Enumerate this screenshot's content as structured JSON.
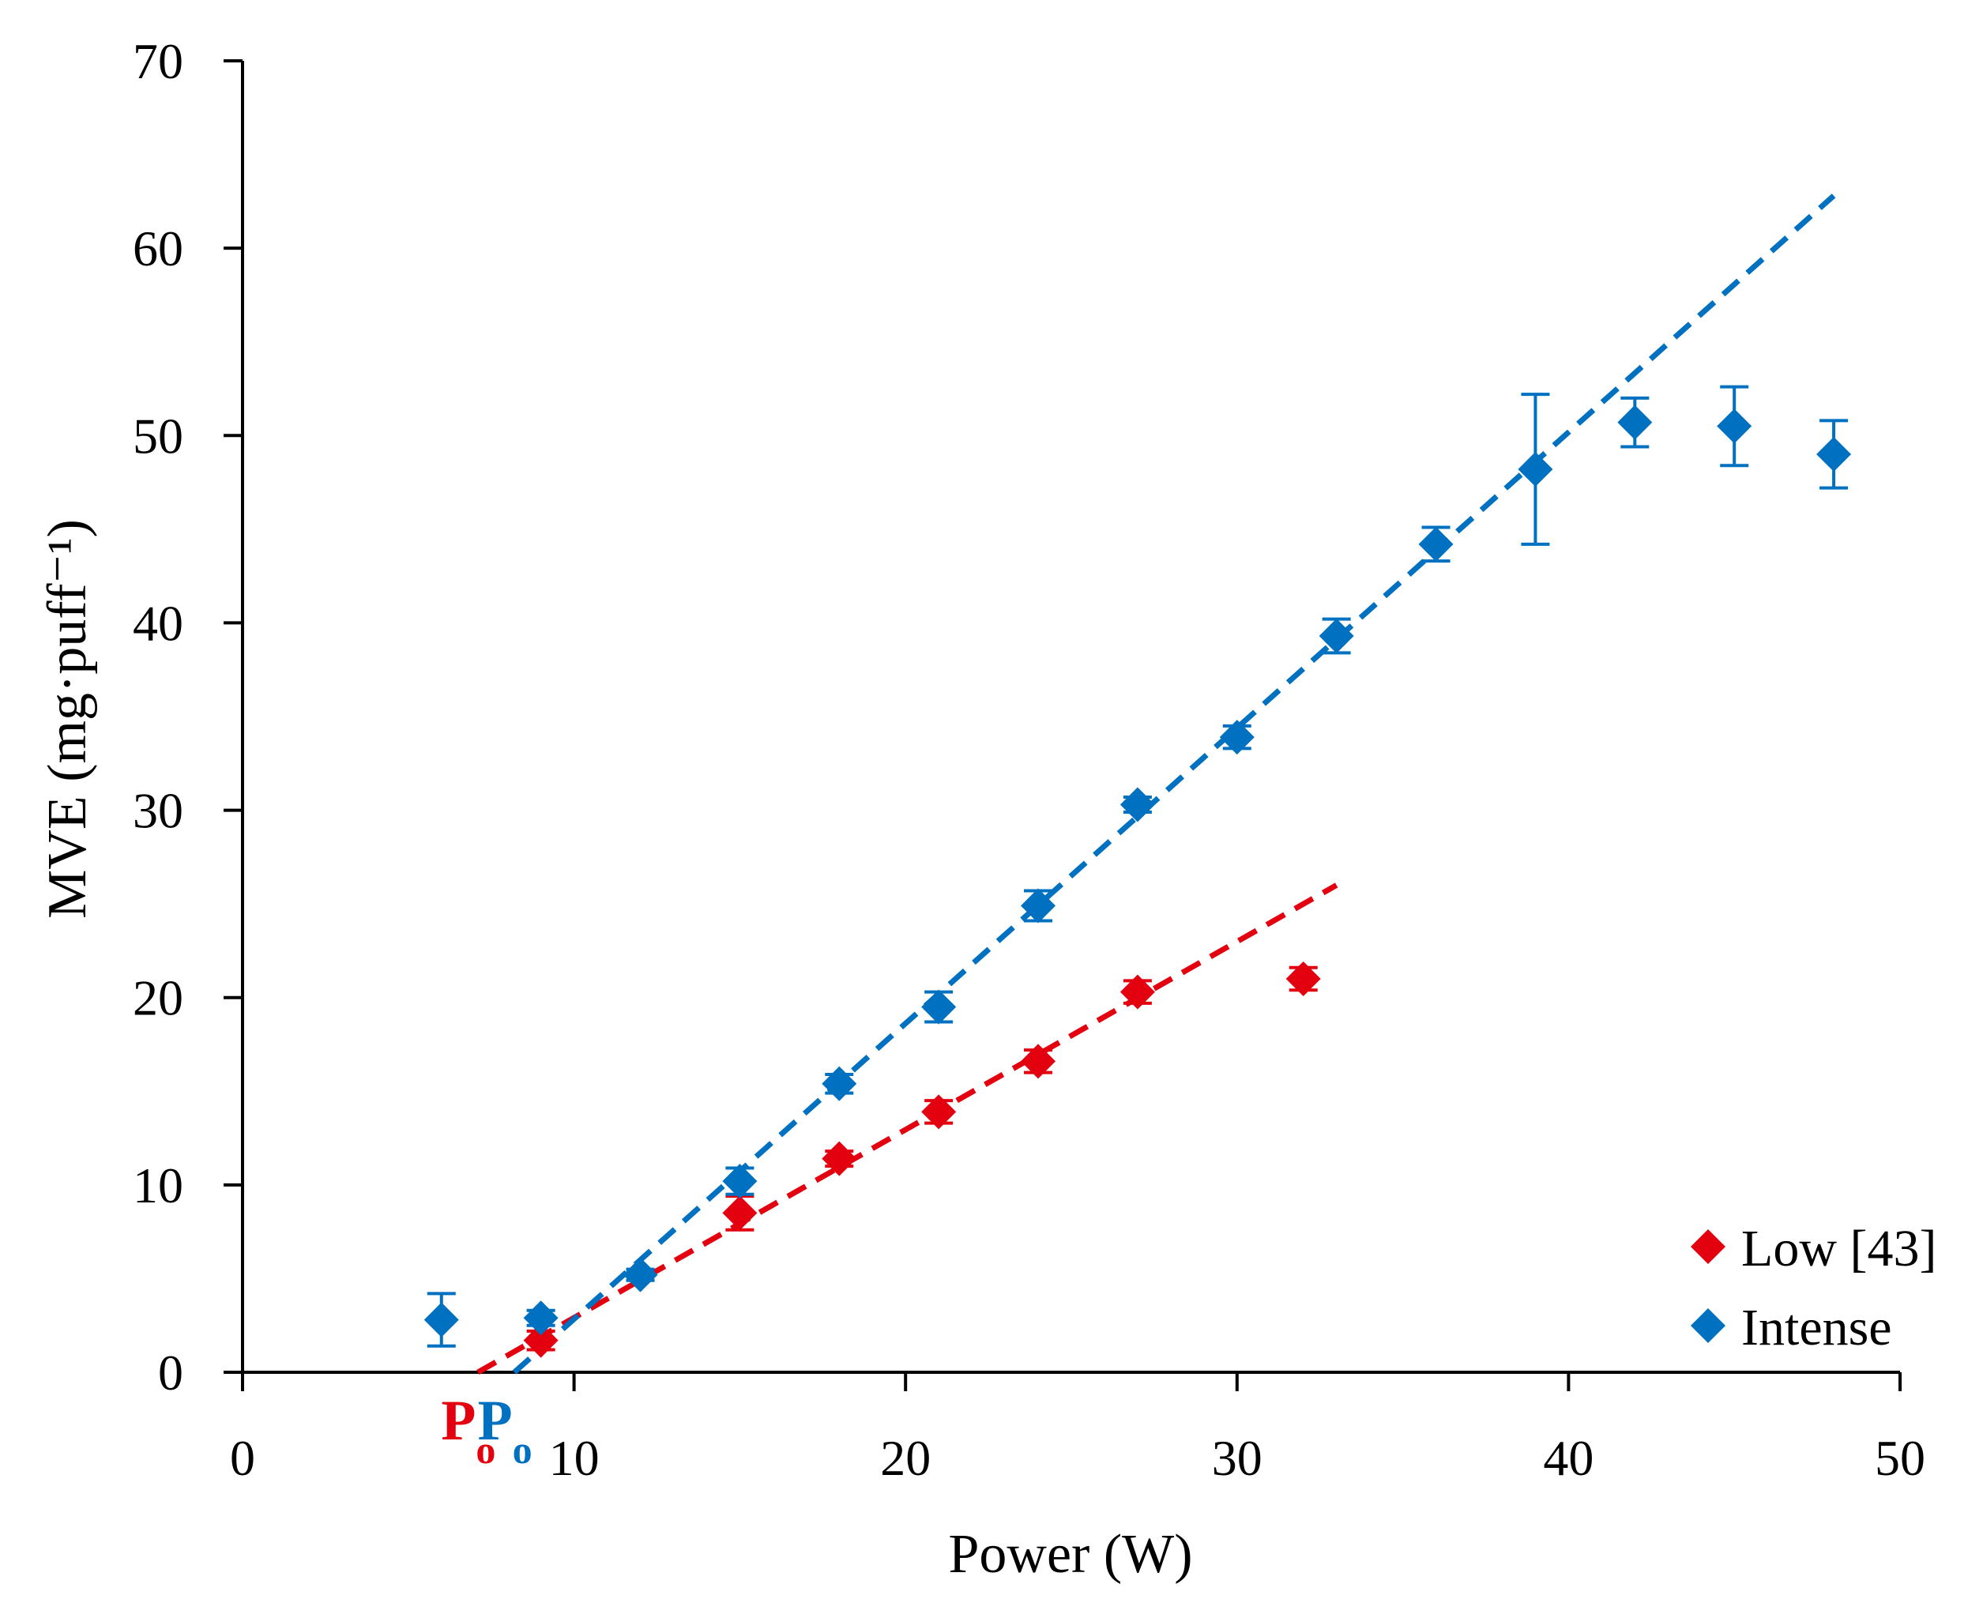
{
  "chart_data": {
    "type": "scatter",
    "xlabel": "Power (W)",
    "ylabel": "MVE (mg·puff⁻¹)",
    "xlim": [
      0,
      50
    ],
    "ylim": [
      0,
      70
    ],
    "xticks": [
      0,
      10,
      20,
      30,
      40,
      50
    ],
    "yticks": [
      0,
      10,
      20,
      30,
      40,
      50,
      60,
      70
    ],
    "grid": false,
    "legend_position": "bottom-right",
    "series": [
      {
        "name": "Low [43]",
        "color": "#e3000f",
        "marker": "diamond",
        "x": [
          9,
          15,
          18,
          21,
          24,
          27,
          32
        ],
        "y": [
          1.7,
          8.5,
          11.4,
          13.9,
          16.6,
          20.3,
          21.0
        ],
        "err": [
          0.5,
          0.9,
          0.4,
          0.6,
          0.6,
          0.6,
          0.6
        ],
        "trendline": {
          "x": [
            7.1,
            33
          ],
          "y": [
            0,
            26
          ]
        }
      },
      {
        "name": "Intense",
        "color": "#0070c0",
        "marker": "diamond",
        "x": [
          6,
          9,
          12,
          15,
          18,
          21,
          24,
          27,
          30,
          33,
          36,
          39,
          42,
          45,
          48
        ],
        "y": [
          2.8,
          2.9,
          5.2,
          10.2,
          15.4,
          19.5,
          24.9,
          30.3,
          33.9,
          39.3,
          44.2,
          48.2,
          50.7,
          50.5,
          49.0
        ],
        "err": [
          1.4,
          0.4,
          0.3,
          0.7,
          0.5,
          0.8,
          0.8,
          0.4,
          0.6,
          0.9,
          0.9,
          4.0,
          1.3,
          2.1,
          1.8
        ],
        "trendline": {
          "x": [
            8.2,
            48
          ],
          "y": [
            0,
            62.8
          ]
        }
      }
    ],
    "annotations": [
      {
        "text": "P",
        "subscript": "o",
        "color": "#e3000f",
        "x": 7.1
      },
      {
        "text": "P",
        "subscript": "o",
        "color": "#0070c0",
        "x": 8.2
      }
    ]
  }
}
